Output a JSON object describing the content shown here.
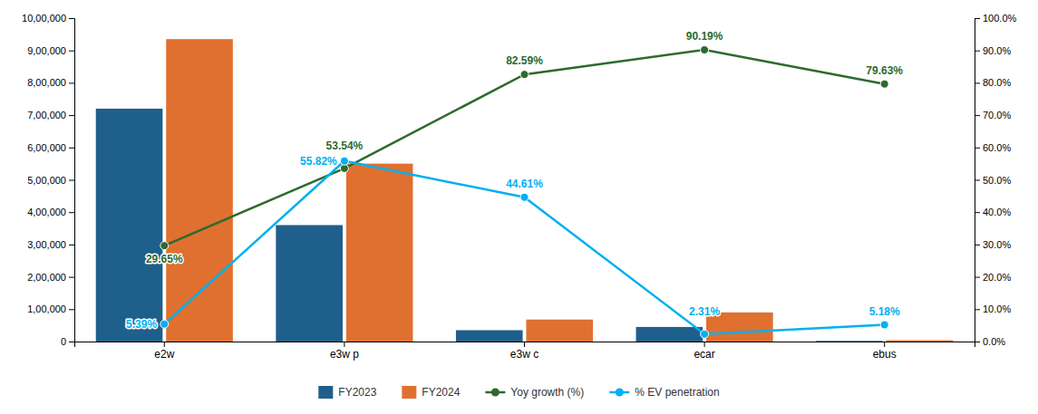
{
  "chart_data": {
    "type": "bar",
    "categories": [
      "e2w",
      "e3w p",
      "e3w c",
      "ecar",
      "ebus"
    ],
    "series": [
      {
        "name": "FY2023",
        "type": "bar",
        "color": "#1f5f8b",
        "values": [
          720000,
          360000,
          35000,
          45000,
          2000
        ]
      },
      {
        "name": "FY2024",
        "type": "bar",
        "color": "#e07030",
        "values": [
          935000,
          550000,
          68000,
          90000,
          4000
        ]
      },
      {
        "name": "Yoy growth (%)",
        "type": "line",
        "axis": "y2",
        "color": "#2d6a2d",
        "marker": "circle",
        "data_labels": true,
        "values": [
          29.65,
          53.54,
          82.59,
          90.19,
          79.63
        ],
        "value_labels": [
          "29.65%",
          "53.54%",
          "82.59%",
          "90.19%",
          "79.63%"
        ]
      },
      {
        "name": "% EV penetration",
        "type": "line",
        "axis": "y2",
        "color": "#00b0f0",
        "marker": "circle",
        "data_labels": true,
        "values": [
          5.39,
          55.82,
          44.61,
          2.31,
          5.18
        ],
        "value_labels": [
          "5.39%",
          "55.82%",
          "44.61%",
          "2.31%",
          "5.18%"
        ]
      }
    ],
    "ylim": [
      0,
      1000000
    ],
    "yticks": [
      0,
      {
        "value": 100000,
        "label": "1,00,000"
      },
      {
        "value": 200000,
        "label": "2,00,000"
      },
      {
        "value": 300000,
        "label": "3,00,000"
      },
      {
        "value": 400000,
        "label": "4,00,000"
      },
      {
        "value": 500000,
        "label": "5,00,000"
      },
      {
        "value": 600000,
        "label": "6,00,000"
      },
      {
        "value": 700000,
        "label": "7,00,000"
      },
      {
        "value": 800000,
        "label": "8,00,000"
      },
      {
        "value": 900000,
        "label": "9,00,000"
      },
      {
        "value": 1000000,
        "label": "10,00,000"
      }
    ],
    "y2lim": [
      0,
      100
    ],
    "y2ticks": [
      {
        "value": 0,
        "label": "0.0%"
      },
      {
        "value": 10,
        "label": "10.0%"
      },
      {
        "value": 20,
        "label": "20.0%"
      },
      {
        "value": 30,
        "label": "30.0%"
      },
      {
        "value": 40,
        "label": "40.0%"
      },
      {
        "value": 50,
        "label": "50.0%"
      },
      {
        "value": 60,
        "label": "60.0%"
      },
      {
        "value": 70,
        "label": "70.0%"
      },
      {
        "value": 80,
        "label": "80.0%"
      },
      {
        "value": 90,
        "label": "90.0%"
      },
      {
        "value": 100,
        "label": "100.0%"
      }
    ],
    "grid": false,
    "legend": "bottom"
  }
}
